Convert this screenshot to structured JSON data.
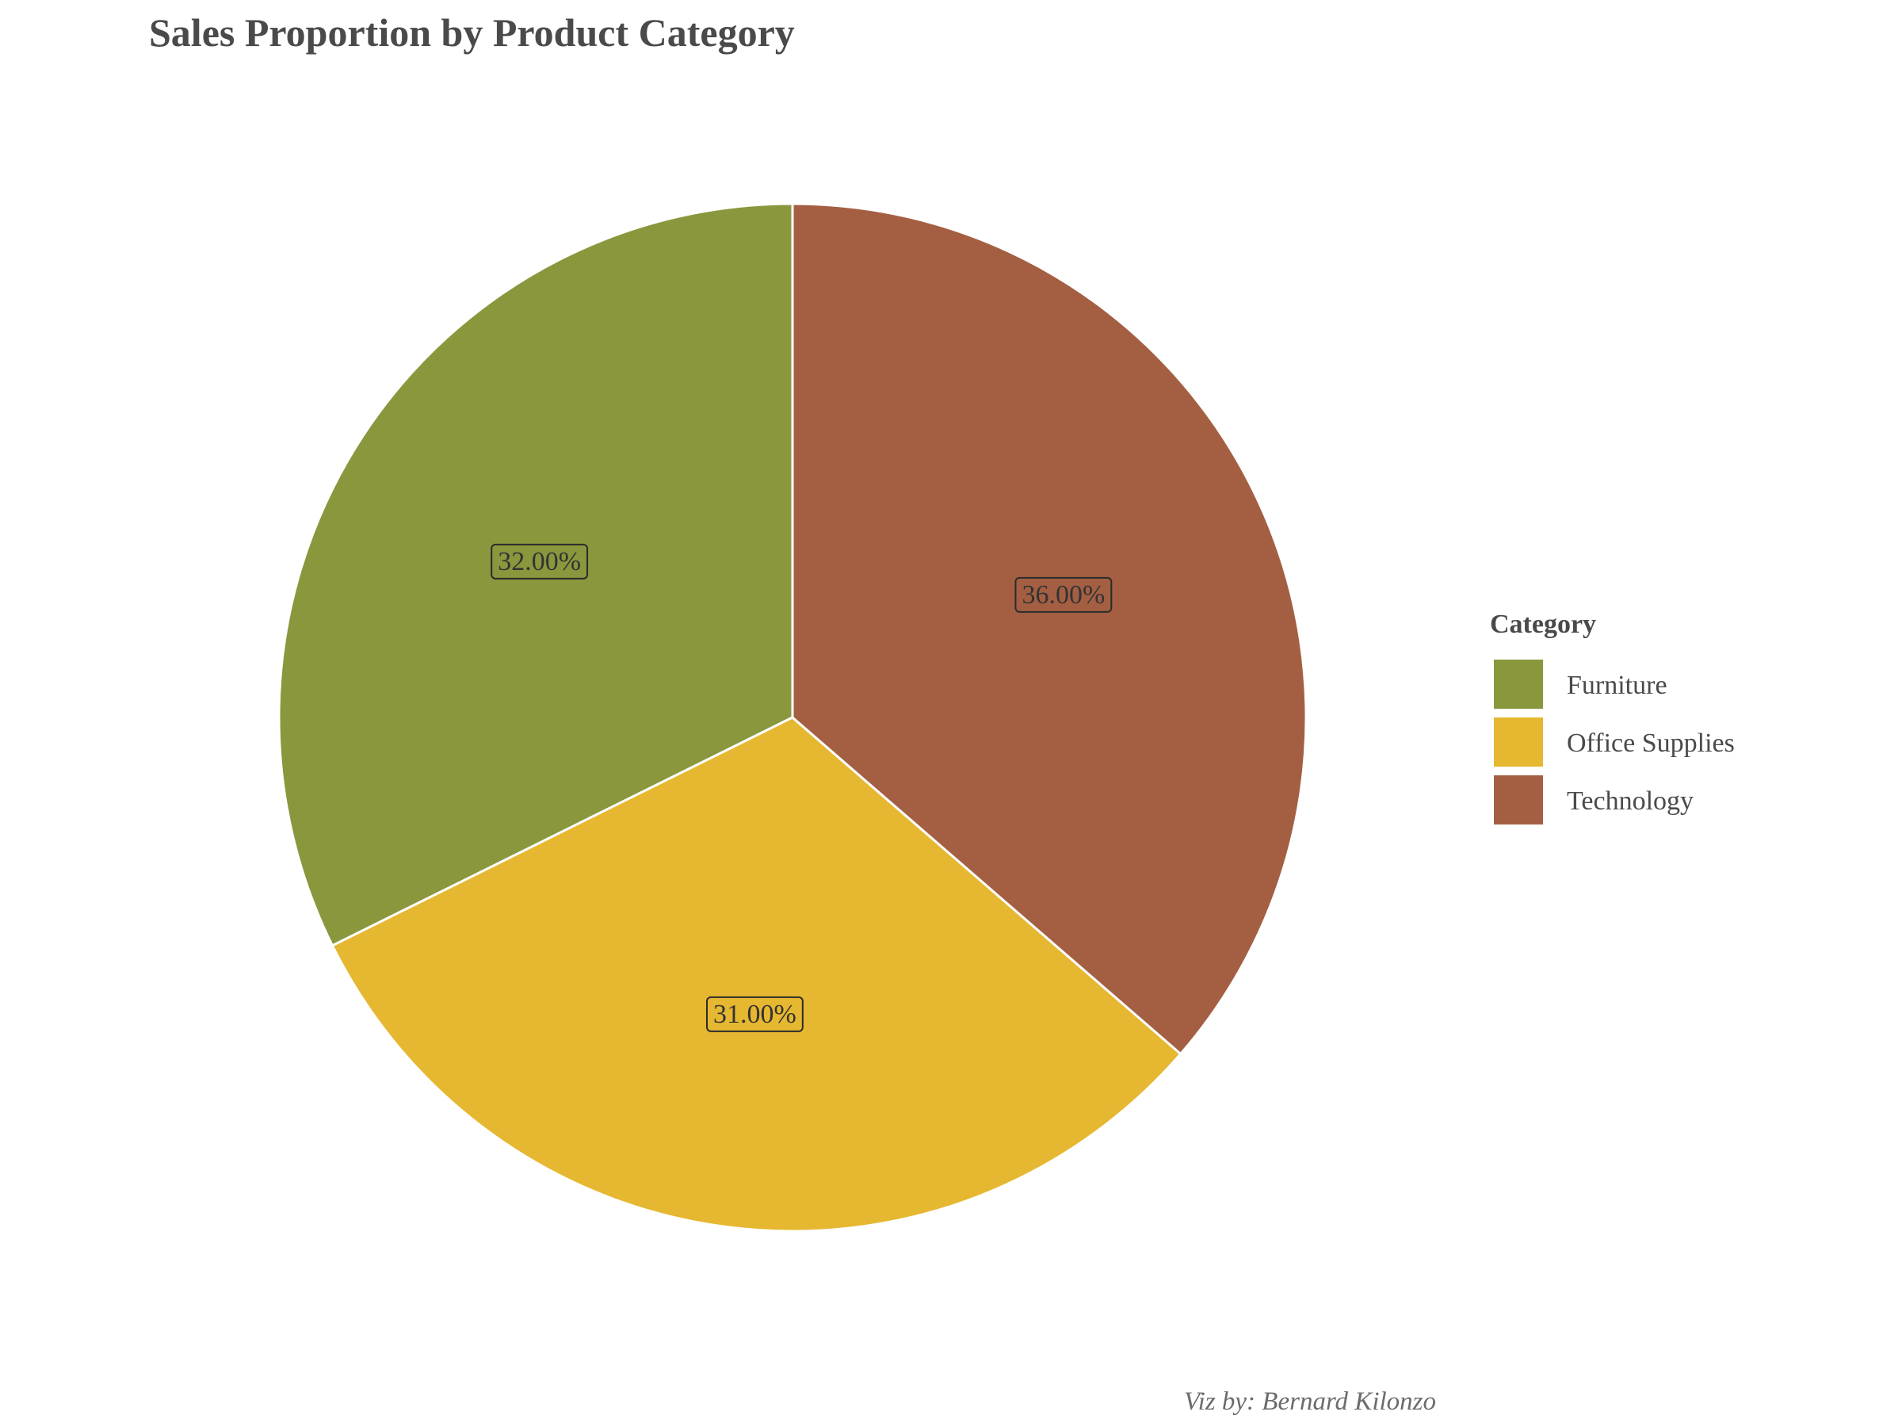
{
  "chart_data": {
    "type": "pie",
    "title": "Sales Proportion by Product Category",
    "legend_title": "Category",
    "legend_position": "right",
    "caption": "Viz by: Bernard Kilonzo",
    "slices": [
      {
        "name": "Furniture",
        "value": 32,
        "label": "32.00%",
        "color": "#8A973D"
      },
      {
        "name": "Office Supplies",
        "value": 31,
        "label": "31.00%",
        "color": "#E6B730"
      },
      {
        "name": "Technology",
        "value": 36,
        "label": "36.00%",
        "color": "#A45F43"
      }
    ]
  }
}
